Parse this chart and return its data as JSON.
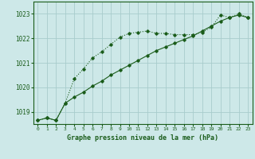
{
  "title": "Graphe pression niveau de la mer (hPa)",
  "bg_color": "#cde8e8",
  "grid_color": "#a8cccc",
  "line_color": "#1a5c1a",
  "xlim": [
    -0.5,
    23.5
  ],
  "ylim": [
    1018.5,
    1023.5
  ],
  "yticks": [
    1019,
    1020,
    1021,
    1022,
    1023
  ],
  "xticks": [
    0,
    1,
    2,
    3,
    4,
    5,
    6,
    7,
    8,
    9,
    10,
    11,
    12,
    13,
    14,
    15,
    16,
    17,
    18,
    19,
    20,
    21,
    22,
    23
  ],
  "series1_x": [
    0,
    1,
    2,
    3,
    4,
    5,
    6,
    7,
    8,
    9,
    10,
    11,
    12,
    13,
    14,
    15,
    16,
    17,
    18,
    19,
    20,
    21,
    22,
    23
  ],
  "series1_y": [
    1018.65,
    1018.75,
    1018.65,
    1019.35,
    1020.35,
    1020.75,
    1021.2,
    1021.45,
    1021.75,
    1022.05,
    1022.2,
    1022.25,
    1022.3,
    1022.2,
    1022.2,
    1022.15,
    1022.15,
    1022.15,
    1022.25,
    1022.45,
    1022.95,
    1022.85,
    1023.0,
    1022.85
  ],
  "series2_x": [
    0,
    1,
    2,
    3,
    4,
    5,
    6,
    7,
    8,
    9,
    10,
    11,
    12,
    13,
    14,
    15,
    16,
    17,
    18,
    19,
    20,
    21,
    22,
    23
  ],
  "series2_y": [
    1018.65,
    1018.75,
    1018.65,
    1019.35,
    1019.6,
    1019.8,
    1020.05,
    1020.25,
    1020.5,
    1020.7,
    1020.9,
    1021.1,
    1021.3,
    1021.5,
    1021.65,
    1021.8,
    1021.95,
    1022.1,
    1022.3,
    1022.5,
    1022.7,
    1022.85,
    1022.95,
    1022.85
  ]
}
